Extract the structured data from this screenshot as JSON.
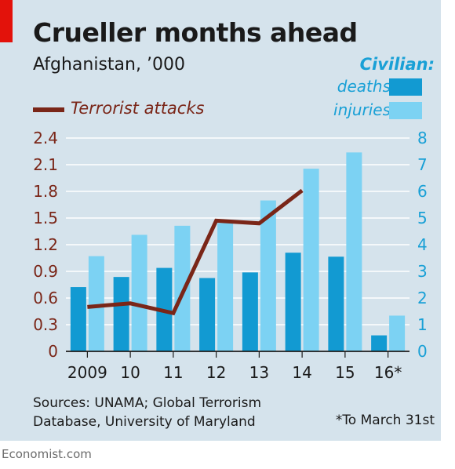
{
  "title": "Crueller months ahead",
  "subtitle": "Afghanistan, ’000",
  "legend": {
    "header": "Civilian:",
    "deaths_label": "deaths",
    "injuries_label": "injuries",
    "line_label": "Terrorist attacks"
  },
  "source": "Sources: UNAMA; Global Terrorism Database, University of Maryland",
  "footnote": "*To March 31st",
  "brand": "Economist.com",
  "colors": {
    "background": "#d5e3ec",
    "deaths": "#129ad2",
    "injuries": "#7cd2f3",
    "attacks": "#7a2618",
    "left_axis": "#7a2618",
    "right_axis": "#19a0d6",
    "accent": "#e3120b"
  },
  "chart_data": {
    "type": "bar",
    "categories": [
      "2009",
      "10",
      "11",
      "12",
      "13",
      "14",
      "15",
      "16*"
    ],
    "left_axis": {
      "ylim": [
        0,
        2.4
      ],
      "ticks": [
        "0",
        "0.3",
        "0.6",
        "0.9",
        "1.2",
        "1.5",
        "1.8",
        "2.1",
        "2.4"
      ],
      "tick_values": [
        0,
        0.3,
        0.6,
        0.9,
        1.2,
        1.5,
        1.8,
        2.1,
        2.4
      ]
    },
    "right_axis": {
      "ylim": [
        0,
        8
      ],
      "ticks": [
        "0",
        "1",
        "2",
        "3",
        "4",
        "5",
        "6",
        "7",
        "8"
      ],
      "tick_values": [
        0,
        1,
        2,
        3,
        4,
        5,
        6,
        7,
        8
      ]
    },
    "series": [
      {
        "name": "deaths",
        "type": "bar",
        "axis": "right",
        "values": [
          2.41,
          2.79,
          3.13,
          2.75,
          2.96,
          3.7,
          3.55,
          0.6
        ]
      },
      {
        "name": "injuries",
        "type": "bar",
        "axis": "right",
        "values": [
          3.57,
          4.37,
          4.71,
          4.81,
          5.66,
          6.85,
          7.46,
          1.34
        ]
      },
      {
        "name": "Terrorist attacks",
        "type": "line",
        "axis": "left",
        "values": [
          0.5,
          0.54,
          0.43,
          1.47,
          1.44,
          1.81,
          null,
          null
        ]
      }
    ],
    "grid": true,
    "legend_position": "top-right"
  }
}
